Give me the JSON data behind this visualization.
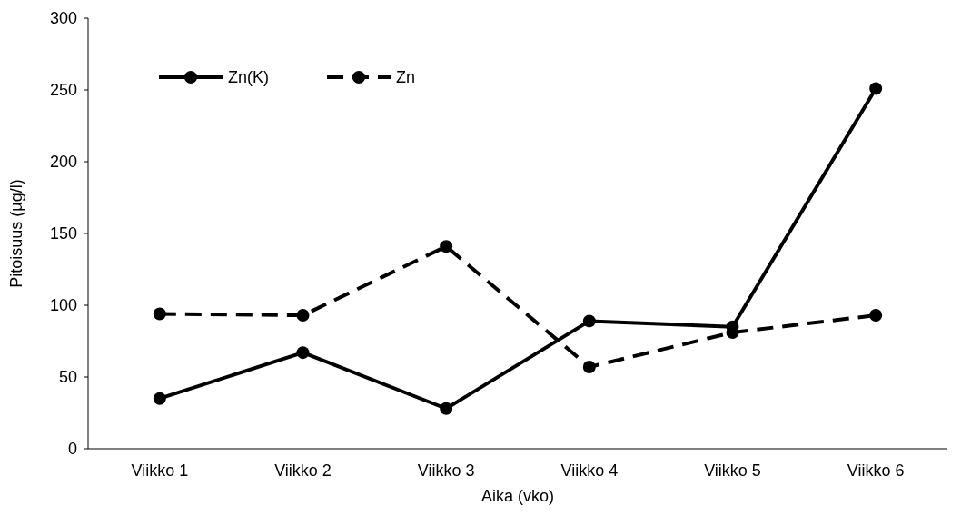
{
  "chart_data": {
    "type": "line",
    "xlabel": "Aika (vko)",
    "ylabel": "Pitoisuus (µg/l)",
    "categories": [
      "Viikko 1",
      "Viikko 2",
      "Viikko 3",
      "Viikko 4",
      "Viikko 5",
      "Viikko 6"
    ],
    "series": [
      {
        "name": "Zn(K)",
        "color": "#000000",
        "line_style": "solid",
        "values": [
          35,
          67,
          28,
          89,
          85,
          251
        ]
      },
      {
        "name": "Zn",
        "color": "#000000",
        "line_style": "dashed",
        "values": [
          94,
          93,
          141,
          57,
          81,
          93
        ]
      }
    ],
    "ylim": [
      0,
      300
    ],
    "yticks": [
      0,
      50,
      100,
      150,
      200,
      250,
      300
    ],
    "grid": false,
    "legend": "top left",
    "marker": "circle"
  }
}
